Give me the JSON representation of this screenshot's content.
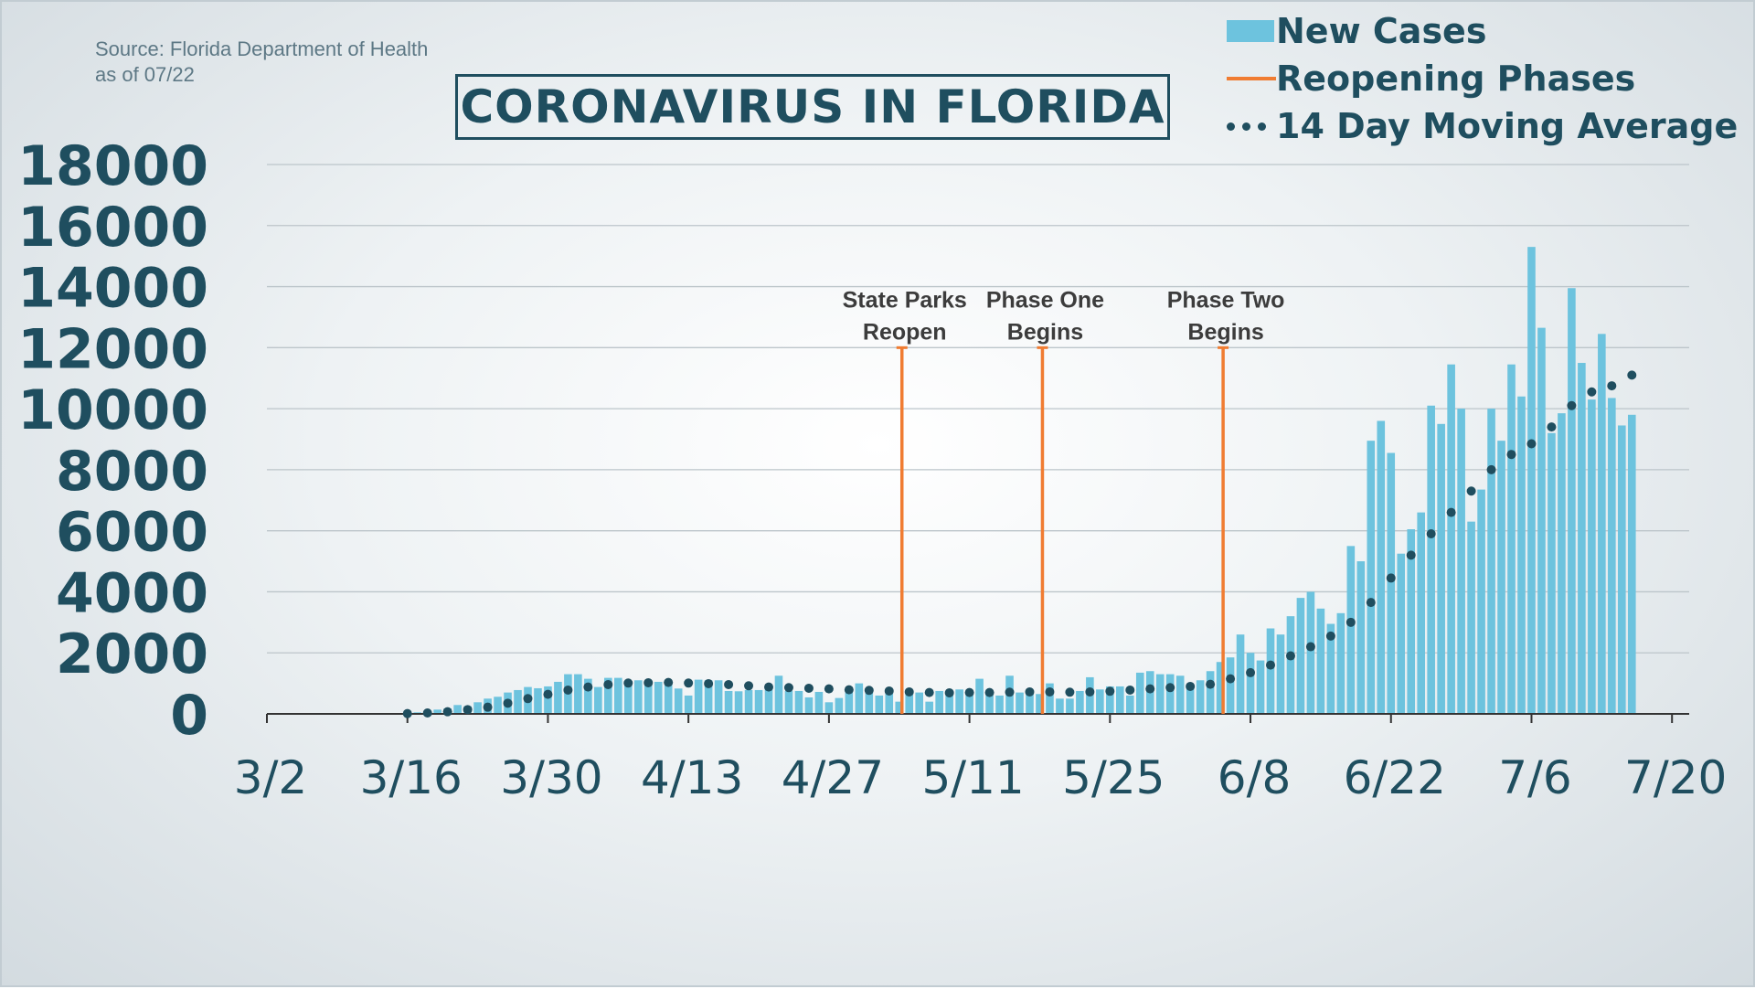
{
  "source": {
    "line1": "Source: Florida Department of Health",
    "line2": "as of 07/22"
  },
  "title": "CORONAVIRUS IN FLORIDA",
  "legend": {
    "new_cases": "New Cases",
    "reopening": "Reopening Phases",
    "moving_avg": "14 Day Moving Average"
  },
  "colors": {
    "bars": "#6dc3de",
    "phase_lines": "#f07c32",
    "moving_average": "#1f4e5f",
    "text": "#1f4e5f",
    "grid": "#bcc5ca"
  },
  "chart_data": {
    "type": "bar",
    "title": "CORONAVIRUS IN FLORIDA",
    "ylim": [
      0,
      18000
    ],
    "yticks": [
      "0",
      "2000",
      "4000",
      "6000",
      "8000",
      "10000",
      "12000",
      "14000",
      "16000",
      "18000"
    ],
    "xticks": [
      "3/2",
      "3/16",
      "3/30",
      "4/13",
      "4/27",
      "5/11",
      "5/25",
      "6/8",
      "6/22",
      "7/6",
      "7/20"
    ],
    "grid": true,
    "legend_position": "top-right",
    "first_date": "3/2",
    "series": [
      {
        "name": "New Cases",
        "type": "bar",
        "values": [
          0,
          0,
          0,
          0,
          0,
          0,
          0,
          0,
          0,
          0,
          0,
          0,
          0,
          0,
          20,
          50,
          80,
          140,
          180,
          290,
          250,
          380,
          500,
          560,
          700,
          780,
          880,
          840,
          900,
          1050,
          1300,
          1300,
          1150,
          880,
          1180,
          1180,
          1080,
          1100,
          1050,
          1050,
          1000,
          830,
          600,
          1120,
          1100,
          1100,
          750,
          740,
          780,
          780,
          850,
          1250,
          750,
          750,
          540,
          720,
          380,
          520,
          800,
          1000,
          850,
          600,
          700,
          400,
          750,
          700,
          400,
          750,
          750,
          800,
          700,
          1150,
          700,
          600,
          1250,
          700,
          700,
          650,
          1000,
          500,
          500,
          750,
          1200,
          800,
          900,
          900,
          600,
          1350,
          1400,
          1300,
          1300,
          1250,
          900,
          1100,
          1400,
          1700,
          1850,
          2600,
          2000,
          1750,
          2800,
          2600,
          3200,
          3800,
          4000,
          3450,
          2950,
          3300,
          5500,
          5000,
          8950,
          9600,
          8550,
          5250,
          6050,
          6600,
          10100,
          9500,
          11450,
          10000,
          6300,
          7350,
          10000,
          8950,
          11450,
          10400,
          15300,
          12650,
          9200,
          9850,
          13950,
          11500,
          10300,
          12450,
          10350,
          9450,
          9800
        ]
      },
      {
        "name": "14 Day Moving Average",
        "type": "line-dotted",
        "values": [
          0,
          0,
          0,
          0,
          0,
          0,
          0,
          0,
          0,
          0,
          0,
          0,
          0,
          0,
          10,
          20,
          30,
          50,
          70,
          100,
          140,
          180,
          220,
          280,
          350,
          420,
          500,
          570,
          640,
          710,
          780,
          840,
          880,
          920,
          960,
          990,
          1010,
          1020,
          1020,
          1030,
          1030,
          1020,
          1010,
          1000,
          990,
          980,
          960,
          940,
          920,
          900,
          880,
          870,
          860,
          850,
          840,
          830,
          820,
          800,
          790,
          780,
          770,
          760,
          750,
          730,
          720,
          710,
          700,
          690,
          690,
          690,
          700,
          700,
          700,
          710,
          710,
          720,
          720,
          720,
          720,
          720,
          710,
          710,
          720,
          730,
          740,
          760,
          780,
          800,
          820,
          840,
          860,
          880,
          900,
          930,
          970,
          1050,
          1150,
          1250,
          1350,
          1470,
          1600,
          1750,
          1900,
          2050,
          2200,
          2350,
          2550,
          2750,
          3000,
          3300,
          3650,
          4050,
          4450,
          4850,
          5200,
          5550,
          5900,
          6250,
          6600,
          6950,
          7300,
          7650,
          8000,
          8250,
          8500,
          8700,
          8850,
          9100,
          9400,
          9750,
          10100,
          10350,
          10550,
          10650,
          10750,
          10950,
          11100
        ]
      },
      {
        "name": "Reopening Phases",
        "type": "vertical-markers",
        "markers": [
          {
            "date": "5/4",
            "label_line1": "State Parks",
            "label_line2": "Reopen",
            "value": 12000
          },
          {
            "date": "5/18",
            "label_line1": "Phase One",
            "label_line2": "Begins",
            "value": 12000
          },
          {
            "date": "6/5",
            "label_line1": "Phase Two",
            "label_line2": "Begins",
            "value": 12000
          }
        ]
      }
    ]
  }
}
